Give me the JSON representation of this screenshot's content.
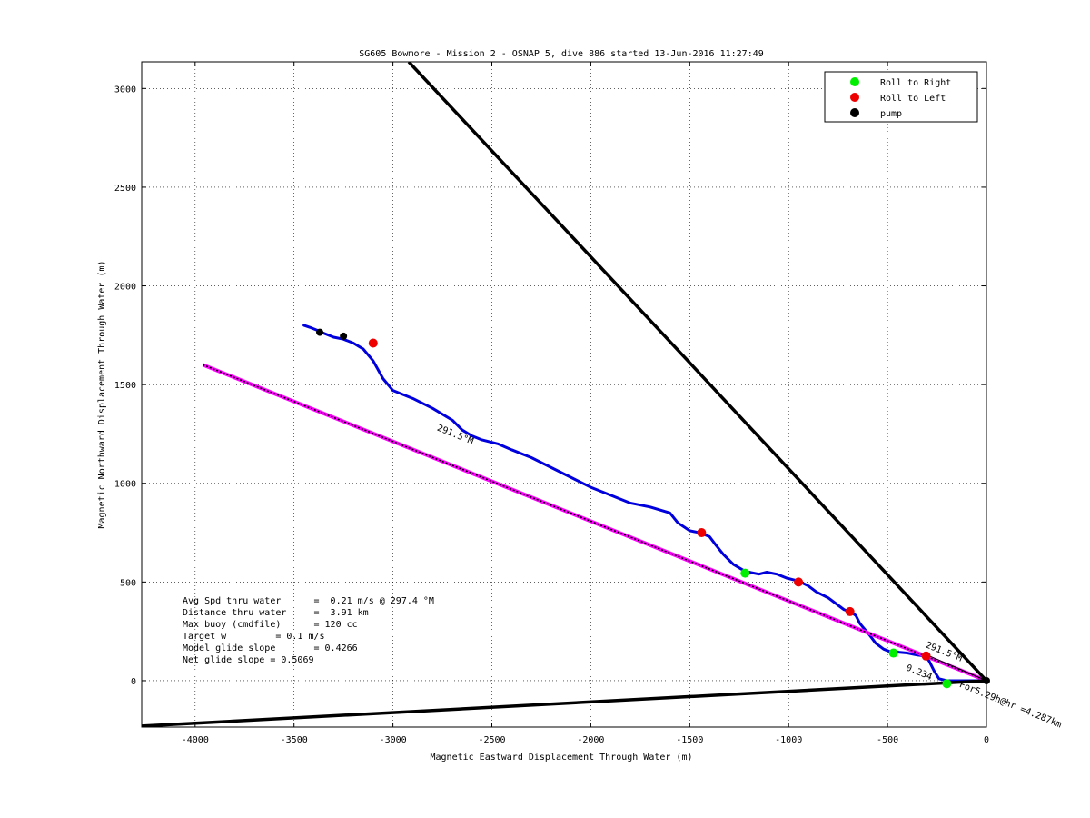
{
  "chart_data": {
    "type": "line",
    "title": "SG605 Bowmore - Mission 2 - OSNAP 5, dive 886 started 13-Jun-2016 11:27:49",
    "xlabel": "Magnetic Eastward Displacement Through Water (m)",
    "ylabel": "Magnetic Northward Displacement Through Water (m)",
    "xlim": [
      -4270,
      0
    ],
    "ylim": [
      -235,
      3135
    ],
    "xticks": [
      -4000,
      -3500,
      -3000,
      -2500,
      -2000,
      -1500,
      -1000,
      -500,
      0
    ],
    "yticks": [
      0,
      500,
      1000,
      1500,
      2000,
      2500,
      3000
    ],
    "xtick_labels": [
      "-4000",
      "-3500",
      "-3000",
      "-2500",
      "-2000",
      "-1500",
      "-1000",
      "-500",
      "0"
    ],
    "ytick_labels": [
      "0",
      "500",
      "1000",
      "1500",
      "2000",
      "2500",
      "3000"
    ],
    "grid": true,
    "legend_placement": "top-right",
    "legend": [
      {
        "label": "Roll to Right",
        "color": "#00ee00"
      },
      {
        "label": "Roll to Left",
        "color": "#ee0000"
      },
      {
        "label": "pump",
        "color": "#000000"
      }
    ],
    "series": [
      {
        "kind": "track",
        "color": "#0000dd",
        "x": [
          0,
          -200,
          -240,
          -265,
          -290,
          -310,
          -350,
          -400,
          -450,
          -470,
          -520,
          -560,
          -590,
          -615,
          -640,
          -660,
          -690,
          -720,
          -760,
          -800,
          -860,
          -900,
          -940,
          -970,
          -1010,
          -1060,
          -1110,
          -1150,
          -1200,
          -1230,
          -1280,
          -1330,
          -1370,
          -1400,
          -1450,
          -1500,
          -1560,
          -1600,
          -1700,
          -1800,
          -1900,
          -2000,
          -2100,
          -2200,
          -2300,
          -2400,
          -2470,
          -2550,
          -2600,
          -2650,
          -2700,
          -2800,
          -2900,
          -3000,
          -3050,
          -3100,
          -3150,
          -3200,
          -3250,
          -3300,
          -3350,
          -3370,
          -3420,
          -3450
        ],
        "y": [
          0,
          0,
          10,
          50,
          100,
          125,
          130,
          140,
          145,
          140,
          160,
          190,
          230,
          260,
          290,
          330,
          350,
          360,
          390,
          420,
          450,
          480,
          500,
          510,
          520,
          540,
          550,
          540,
          550,
          560,
          590,
          640,
          690,
          730,
          750,
          760,
          800,
          850,
          880,
          900,
          940,
          980,
          1030,
          1080,
          1130,
          1170,
          1200,
          1220,
          1240,
          1270,
          1320,
          1380,
          1430,
          1470,
          1530,
          1620,
          1680,
          1710,
          1730,
          1740,
          1760,
          1770,
          1790,
          1800
        ]
      },
      {
        "kind": "heading-line",
        "label": "291.5°M",
        "color": "#ff00ff",
        "x": [
          0,
          -3960
        ],
        "y": [
          0,
          1600
        ]
      },
      {
        "kind": "bound-line",
        "color": "#000000",
        "x": [
          0,
          -2920
        ],
        "y": [
          0,
          3135
        ]
      },
      {
        "kind": "bound-line",
        "color": "#000000",
        "x": [
          0,
          -4270
        ],
        "y": [
          0,
          -230
        ]
      },
      {
        "kind": "projection-line",
        "color": "#000000",
        "x": [
          0,
          -300
        ],
        "y": [
          0,
          130
        ]
      }
    ],
    "markers": {
      "roll_right": {
        "x": [
          -1220,
          -470,
          -200
        ],
        "y": [
          545,
          140,
          -15
        ]
      },
      "roll_left": {
        "x": [
          -3100,
          -1440,
          -950,
          -690,
          -305
        ],
        "y": [
          1710,
          750,
          500,
          350,
          125
        ]
      },
      "pump": {
        "x": [
          -3370,
          -3250,
          0
        ],
        "y": [
          1765,
          1745,
          0
        ]
      }
    },
    "annotations": [
      {
        "text": "291.5°M",
        "x": -2780,
        "y": 1270,
        "rotation": 22
      },
      {
        "text": "291.5°M",
        "x": -310,
        "y": 170,
        "rotation": 22
      },
      {
        "text": "0.234",
        "x": -410,
        "y": 55,
        "rotation": 22
      },
      {
        "text": "For5.29h@hr =4.287km",
        "x": -140,
        "y": -30,
        "rotation": 22
      }
    ],
    "stats": [
      "Avg Spd thru water      =  0.21 m/s @ 297.4 °M",
      "Distance thru water     =  3.91 km",
      "Max buoy (cmdfile)      = 120 cc",
      "Target w         = 0.1 m/s",
      "Model glide slope       = 0.4266",
      "Net glide slope = 0.5069"
    ]
  }
}
